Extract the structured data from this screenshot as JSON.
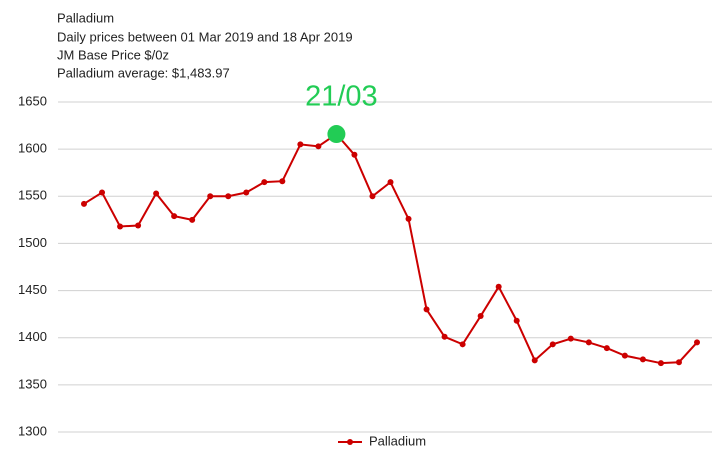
{
  "chart_data": {
    "type": "line",
    "title": "Palladium",
    "subtitle": "Daily prices between 01 Mar 2019 and 18 Apr 2019",
    "unit_label": "JM Base Price $/0z",
    "average_label": "Palladium average: $1,483.97",
    "categories": [
      null,
      null,
      null,
      null,
      null,
      null,
      null,
      null,
      null,
      null,
      null,
      null,
      null,
      null,
      "21/03",
      null,
      null,
      null,
      null,
      null,
      null,
      null,
      null,
      null,
      null,
      null,
      null,
      null,
      null,
      null,
      null,
      null,
      null,
      null,
      null
    ],
    "series": [
      {
        "name": "Palladium",
        "color": "#cc0000",
        "values": [
          1542,
          1554,
          1518,
          1519,
          1553,
          1529,
          1525,
          1550,
          1550,
          1554,
          1565,
          1566,
          1605,
          1603,
          1616,
          1594,
          1550,
          1565,
          1526,
          1430,
          1401,
          1393,
          1423,
          1454,
          1418,
          1376,
          1393,
          1399,
          1395,
          1389,
          1381,
          1377,
          1373,
          1374,
          1395
        ]
      }
    ],
    "highlight_color": "#22cc55",
    "ylim": [
      1300,
      1650
    ],
    "yticks": [
      1300,
      1350,
      1400,
      1450,
      1500,
      1550,
      1600,
      1650
    ],
    "grid": true,
    "legend": "bottom"
  }
}
